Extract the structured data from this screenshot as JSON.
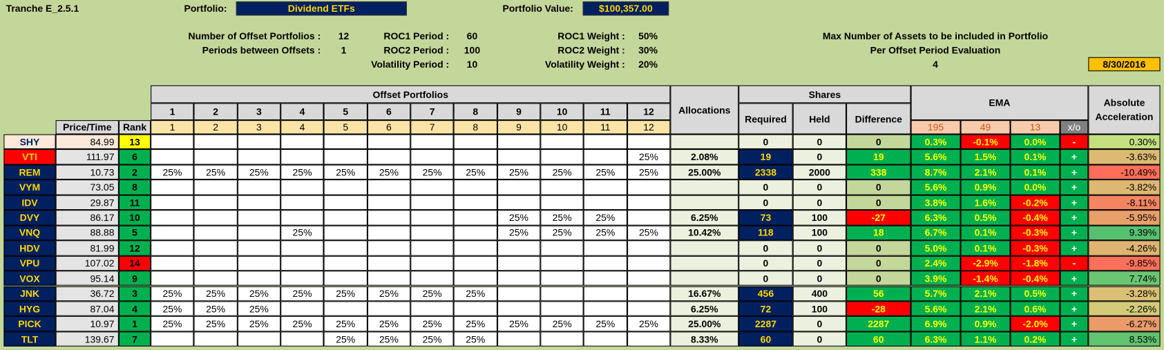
{
  "header": {
    "title": "Tranche E_2.5.1",
    "portfolio_label": "Portfolio:",
    "portfolio": "Dividend ETFs",
    "value_label": "Portfolio Value:",
    "value": "$100,357.00",
    "date": "8/30/2016"
  },
  "parameters": [
    [
      {
        "label": "Number of Offset Portfolios :",
        "value": 12
      },
      {
        "label": "Periods between Offsets :",
        "value": 1
      }
    ],
    [
      {
        "label": "ROC1 Period :",
        "value": 60
      },
      {
        "label": "ROC2 Period :",
        "value": 100
      },
      {
        "label": "Volatility Period :",
        "value": 10
      }
    ],
    [
      {
        "label": "ROC1 Weight :",
        "value": "50%"
      },
      {
        "label": "ROC2 Weight :",
        "value": "30%"
      },
      {
        "label": "Volatility Weight :",
        "value": "20%"
      }
    ]
  ],
  "max_assets": {
    "line1": "Max Number of Assets to be included in Portfolio",
    "line2": "Per Offset Period Evaluation",
    "value": 4
  },
  "table": {
    "columns": {
      "offset_title": "Offset Portfolios",
      "offsets": [
        1,
        2,
        3,
        4,
        5,
        6,
        7,
        8,
        9,
        10,
        11,
        12
      ],
      "price": "Price/Time",
      "rank": "Rank",
      "allocations": "Allocations",
      "shares": "Shares",
      "required": "Required",
      "held": "Held",
      "difference": "Difference",
      "ema": "EMA",
      "ema_periods": [
        195,
        49,
        13
      ],
      "xo": "x/o",
      "accel": "Absolute Acceleration"
    },
    "rows": [
      {
        "ticker": "SHY",
        "price": 84.99,
        "rank": 13,
        "offsets": [
          null,
          null,
          null,
          null,
          null,
          null,
          null,
          null,
          null,
          null,
          null,
          null
        ],
        "allocation": null,
        "required": 0,
        "held": 0,
        "difference": 0,
        "ema": [
          "0.3%",
          "-0.1%",
          "0.0%"
        ],
        "xo": "-",
        "accel": "0.30%"
      },
      {
        "ticker": "VTI",
        "price": 111.97,
        "rank": 6,
        "offsets": [
          null,
          null,
          null,
          null,
          null,
          null,
          null,
          null,
          null,
          null,
          null,
          "25%"
        ],
        "allocation": "2.08%",
        "required": 19,
        "held": 0,
        "difference": 19,
        "ema": [
          "5.6%",
          "1.5%",
          "0.1%"
        ],
        "xo": "+",
        "accel": "-3.63%"
      },
      {
        "ticker": "REM",
        "price": 10.73,
        "rank": 2,
        "offsets": [
          "25%",
          "25%",
          "25%",
          "25%",
          "25%",
          "25%",
          "25%",
          "25%",
          "25%",
          "25%",
          "25%",
          "25%"
        ],
        "allocation": "25.00%",
        "required": 2338,
        "held": 2000,
        "difference": 338,
        "ema": [
          "8.7%",
          "2.1%",
          "0.1%"
        ],
        "xo": "+",
        "accel": "-10.49%"
      },
      {
        "ticker": "VYM",
        "price": 73.05,
        "rank": 8,
        "offsets": [
          null,
          null,
          null,
          null,
          null,
          null,
          null,
          null,
          null,
          null,
          null,
          null
        ],
        "allocation": null,
        "required": 0,
        "held": 0,
        "difference": 0,
        "ema": [
          "5.6%",
          "0.9%",
          "0.0%"
        ],
        "xo": "+",
        "accel": "-3.82%"
      },
      {
        "ticker": "IDV",
        "price": 29.87,
        "rank": 11,
        "offsets": [
          null,
          null,
          null,
          null,
          null,
          null,
          null,
          null,
          null,
          null,
          null,
          null
        ],
        "allocation": null,
        "required": 0,
        "held": 0,
        "difference": 0,
        "ema": [
          "3.8%",
          "1.6%",
          "-0.2%"
        ],
        "xo": "+",
        "accel": "-8.11%"
      },
      {
        "ticker": "DVY",
        "price": 86.17,
        "rank": 10,
        "offsets": [
          null,
          null,
          null,
          null,
          null,
          null,
          null,
          null,
          "25%",
          "25%",
          "25%",
          null
        ],
        "allocation": "6.25%",
        "required": 73,
        "held": 100,
        "difference": -27,
        "ema": [
          "6.3%",
          "0.5%",
          "-0.4%"
        ],
        "xo": "+",
        "accel": "-5.95%"
      },
      {
        "ticker": "VNQ",
        "price": 88.88,
        "rank": 5,
        "offsets": [
          null,
          null,
          null,
          "25%",
          null,
          null,
          null,
          null,
          "25%",
          "25%",
          "25%",
          "25%"
        ],
        "allocation": "10.42%",
        "required": 118,
        "held": 100,
        "difference": 18,
        "ema": [
          "6.7%",
          "0.1%",
          "-0.3%"
        ],
        "xo": "+",
        "accel": "9.39%"
      },
      {
        "ticker": "HDV",
        "price": 81.99,
        "rank": 12,
        "offsets": [
          null,
          null,
          null,
          null,
          null,
          null,
          null,
          null,
          null,
          null,
          null,
          null
        ],
        "allocation": null,
        "required": 0,
        "held": 0,
        "difference": 0,
        "ema": [
          "5.0%",
          "0.1%",
          "-0.3%"
        ],
        "xo": "+",
        "accel": "-4.26%"
      },
      {
        "ticker": "VPU",
        "price": 107.02,
        "rank": 14,
        "offsets": [
          null,
          null,
          null,
          null,
          null,
          null,
          null,
          null,
          null,
          null,
          null,
          null
        ],
        "allocation": null,
        "required": 0,
        "held": 0,
        "difference": 0,
        "ema": [
          "2.4%",
          "-2.9%",
          "-1.8%"
        ],
        "xo": "-",
        "accel": "-9.85%"
      },
      {
        "ticker": "VOX",
        "price": 95.14,
        "rank": 9,
        "offsets": [
          null,
          null,
          null,
          null,
          null,
          null,
          null,
          null,
          null,
          null,
          null,
          null
        ],
        "allocation": null,
        "required": 0,
        "held": 0,
        "difference": 0,
        "ema": [
          "3.9%",
          "-1.4%",
          "-0.4%"
        ],
        "xo": "+",
        "accel": "7.74%"
      },
      {
        "ticker": "JNK",
        "price": 36.72,
        "rank": 3,
        "offsets": [
          "25%",
          "25%",
          "25%",
          "25%",
          "25%",
          "25%",
          "25%",
          "25%",
          null,
          null,
          null,
          null
        ],
        "allocation": "16.67%",
        "required": 456,
        "held": 400,
        "difference": 56,
        "ema": [
          "5.7%",
          "2.1%",
          "0.5%"
        ],
        "xo": "+",
        "accel": "-3.28%"
      },
      {
        "ticker": "HYG",
        "price": 87.04,
        "rank": 4,
        "offsets": [
          "25%",
          "25%",
          "25%",
          null,
          null,
          null,
          null,
          null,
          null,
          null,
          null,
          null
        ],
        "allocation": "6.25%",
        "required": 72,
        "held": 100,
        "difference": -28,
        "ema": [
          "5.6%",
          "2.1%",
          "0.6%"
        ],
        "xo": "+",
        "accel": "-2.26%"
      },
      {
        "ticker": "PICK",
        "price": 10.97,
        "rank": 1,
        "offsets": [
          "25%",
          "25%",
          "25%",
          "25%",
          "25%",
          "25%",
          "25%",
          "25%",
          "25%",
          "25%",
          "25%",
          "25%"
        ],
        "allocation": "25.00%",
        "required": 2287,
        "held": 0,
        "difference": 2287,
        "ema": [
          "6.9%",
          "0.9%",
          "-2.0%"
        ],
        "xo": "+",
        "accel": "-6.27%"
      },
      {
        "ticker": "TLT",
        "price": 139.67,
        "rank": 7,
        "offsets": [
          null,
          null,
          null,
          null,
          "25%",
          "25%",
          "25%",
          "25%",
          null,
          null,
          null,
          null
        ],
        "allocation": "8.33%",
        "required": 60,
        "held": 0,
        "difference": 60,
        "ema": [
          "6.3%",
          "1.1%",
          "0.2%"
        ],
        "xo": "+",
        "accel": "8.53%"
      }
    ]
  }
}
